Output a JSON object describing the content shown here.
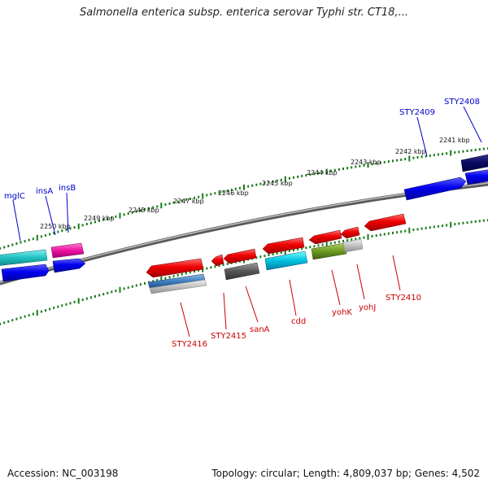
{
  "title": "Salmonella enterica subsp. enterica serovar Typhi str. CT18,...",
  "footer": {
    "accession": "Accession: NC_003198",
    "summary": "Topology: circular; Length: 4,809,037 bp; Genes: 4,502"
  },
  "ruler_labels": [
    "2241 kbp",
    "2242 kbp",
    "2243 kbp",
    "2244 kbp",
    "2245 kbp",
    "2246 kbp",
    "2247 kbp",
    "2248 kbp",
    "2249 kbp",
    "2250 kbp"
  ],
  "colors": {
    "forward_label": "#0000cc",
    "reverse_label": "#cc0000",
    "tick": "#1a7a1a",
    "backbone": "#888888"
  },
  "forward_gene_labels": [
    "mglC",
    "insA",
    "insB",
    "STY2409",
    "STY2408"
  ],
  "reverse_gene_labels": [
    "STY2416",
    "STY2415",
    "sanA",
    "cdd",
    "yohK",
    "yohJ",
    "STY2410"
  ]
}
